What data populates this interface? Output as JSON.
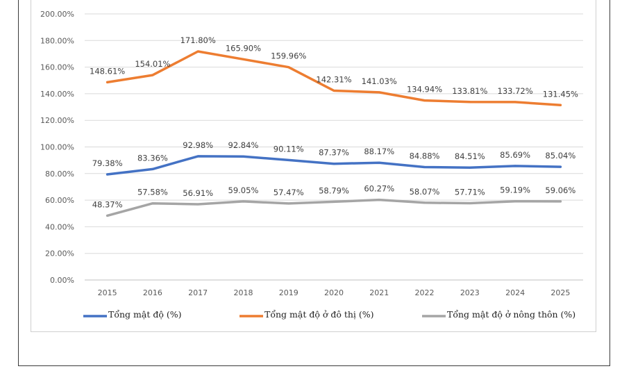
{
  "chart_data": {
    "type": "line",
    "title": "",
    "xlabel": "",
    "ylabel": "",
    "categories": [
      "2015",
      "2016",
      "2017",
      "2018",
      "2019",
      "2020",
      "2021",
      "2022",
      "2023",
      "2024",
      "2025"
    ],
    "ylim": [
      0,
      200
    ],
    "yticks": [
      "0.00%",
      "20.00%",
      "40.00%",
      "60.00%",
      "80.00%",
      "100.00%",
      "120.00%",
      "140.00%",
      "160.00%",
      "180.00%",
      "200.00%"
    ],
    "grid": true,
    "legend_position": "bottom",
    "series": [
      {
        "name": "Tổng mật độ (%)",
        "color": "#4472C4",
        "values": [
          79.38,
          83.36,
          92.98,
          92.84,
          90.11,
          87.37,
          88.17,
          84.88,
          84.51,
          85.69,
          85.04
        ],
        "labels": [
          "79.38%",
          "83.36%",
          "92.98%",
          "92.84%",
          "90.11%",
          "87.37%",
          "88.17%",
          "84.88%",
          "84.51%",
          "85.69%",
          "85.04%"
        ]
      },
      {
        "name": "Tổng mật độ ở đô thị (%)",
        "color": "#ED7D31",
        "values": [
          148.61,
          154.01,
          171.8,
          165.9,
          159.96,
          142.31,
          141.03,
          134.94,
          133.81,
          133.72,
          131.45
        ],
        "labels": [
          "148.61%",
          "154.01%",
          "171.80%",
          "165.90%",
          "159.96%",
          "142.31%",
          "141.03%",
          "134.94%",
          "133.81%",
          "133.72%",
          "131.45%"
        ]
      },
      {
        "name": "Tổng mật độ ở nông thôn (%)",
        "color": "#A5A5A5",
        "values": [
          48.37,
          57.58,
          56.91,
          59.05,
          57.47,
          58.79,
          60.27,
          58.07,
          57.71,
          59.19,
          59.06
        ],
        "labels": [
          "48.37%",
          "57.58%",
          "56.91%",
          "59.05%",
          "57.47%",
          "58.79%",
          "60.27%",
          "58.07%",
          "57.71%",
          "59.19%",
          "59.06%"
        ]
      }
    ]
  }
}
